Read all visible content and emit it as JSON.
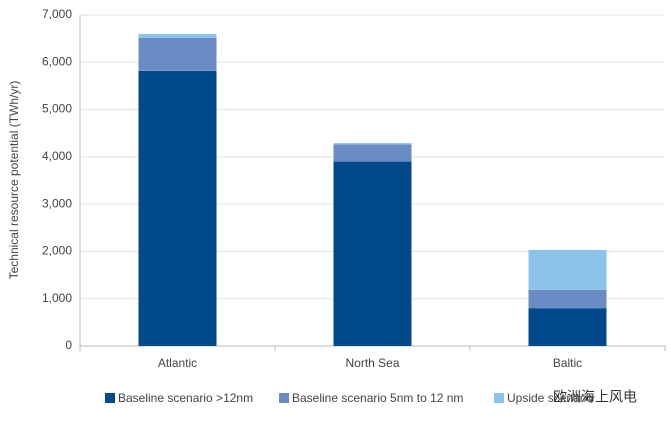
{
  "chart_data": {
    "type": "stacked-bar",
    "y_label": "Technical resource potential (TWh/yr)",
    "categories": [
      "Atlantic",
      "North Sea",
      "Baltic"
    ],
    "series": [
      {
        "name": "Baseline scenario >12nm",
        "color": "#004a8c",
        "values": [
          5820,
          3900,
          800
        ]
      },
      {
        "name": "Baseline scenario 5nm to 12 nm",
        "color": "#6a8bc3",
        "values": [
          700,
          360,
          390
        ]
      },
      {
        "name": "Upside scenario",
        "color": "#8cc3ea",
        "values": [
          80,
          30,
          840
        ]
      }
    ],
    "ylim": [
      0,
      7000
    ],
    "yticks": [
      0,
      {
        "value": 1000,
        "label": "1,000"
      },
      {
        "value": 2000,
        "label": "2,000"
      },
      {
        "value": 3000,
        "label": "3,000"
      },
      {
        "value": 4000,
        "label": "4,000"
      },
      {
        "value": 5000,
        "label": "5,000"
      },
      {
        "value": 6000,
        "label": "6,000"
      },
      {
        "value": 7000,
        "label": "7,000"
      }
    ],
    "grid": true,
    "watermark": "欧洲海上风电"
  }
}
